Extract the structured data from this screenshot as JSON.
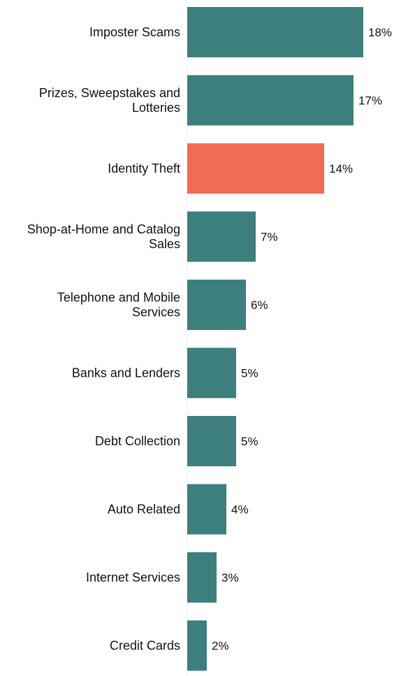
{
  "chart_data": {
    "type": "bar",
    "orientation": "horizontal",
    "categories": [
      [
        "Imposter Scams"
      ],
      [
        "Prizes, Sweepstakes and",
        "Lotteries"
      ],
      [
        "Identity Theft"
      ],
      [
        "Shop-at-Home and Catalog",
        "Sales"
      ],
      [
        "Telephone and Mobile",
        "Services"
      ],
      [
        "Banks and Lenders"
      ],
      [
        "Debt Collection"
      ],
      [
        "Auto Related"
      ],
      [
        "Internet Services"
      ],
      [
        "Credit Cards"
      ]
    ],
    "values": [
      18,
      17,
      14,
      7,
      6,
      5,
      5,
      4,
      3,
      2
    ],
    "value_labels": [
      "18%",
      "17%",
      "14%",
      "7%",
      "6%",
      "5%",
      "5%",
      "4%",
      "3%",
      "2%"
    ],
    "bar_colors": [
      "#3d7f7c",
      "#3d7f7c",
      "#f26c53",
      "#3d7f7c",
      "#3d7f7c",
      "#3d7f7c",
      "#3d7f7c",
      "#3d7f7c",
      "#3d7f7c",
      "#3d7f7c"
    ],
    "xlim": [
      0,
      18
    ],
    "title": "",
    "xlabel": "",
    "ylabel": "",
    "grid": false,
    "legend": "none"
  }
}
